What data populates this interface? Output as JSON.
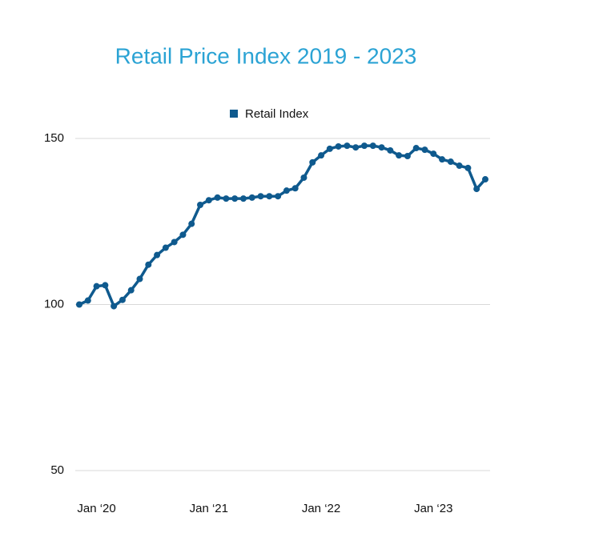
{
  "chart_data": {
    "type": "line",
    "title": "Retail Price Index 2019 - 2023",
    "categories": [
      null,
      null,
      "Jan ‘20",
      null,
      null,
      null,
      null,
      null,
      null,
      null,
      null,
      null,
      null,
      null,
      null,
      "Jan ‘21",
      null,
      null,
      null,
      null,
      null,
      null,
      null,
      null,
      null,
      null,
      null,
      null,
      "Jan ‘22",
      null,
      null,
      null,
      null,
      null,
      null,
      null,
      null,
      null,
      null,
      null,
      null,
      "Jan ‘23",
      null,
      null,
      null,
      null,
      null,
      null
    ],
    "series": [
      {
        "name": "Retail Index",
        "color": "#0f5a8e",
        "values": [
          100,
          101.2,
          105.5,
          105.8,
          99.5,
          101.4,
          104.3,
          107.7,
          112,
          114.9,
          117.1,
          118.8,
          121,
          124.3,
          130,
          131.4,
          132.2,
          131.9,
          131.9,
          131.9,
          132.2,
          132.6,
          132.6,
          132.6,
          134.3,
          135,
          138.2,
          142.8,
          144.9,
          146.9,
          147.6,
          147.8,
          147.3,
          147.8,
          147.8,
          147.3,
          146.4,
          144.9,
          144.7,
          147.1,
          146.6,
          145.4,
          143.7,
          143,
          141.8,
          141.1,
          134.8,
          137.7
        ]
      }
    ],
    "ylim": [
      50,
      150
    ],
    "yticks": [
      50,
      100,
      150
    ],
    "grid": true,
    "legend": "top"
  }
}
